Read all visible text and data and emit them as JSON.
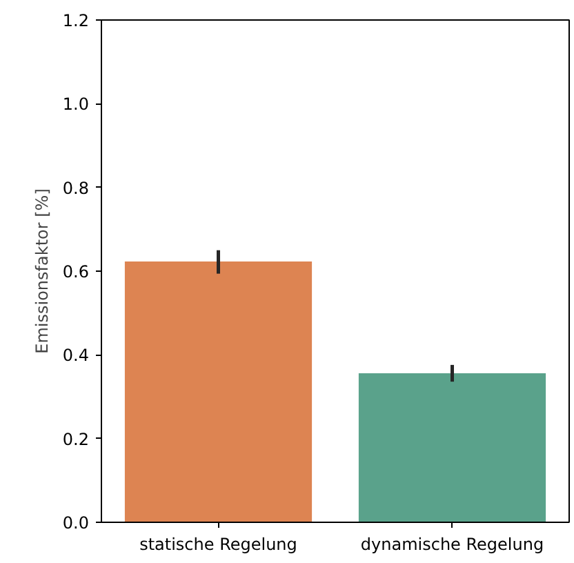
{
  "chart_data": {
    "type": "bar",
    "ylabel": "Emissionsfaktor [%]",
    "categories": [
      "statische Regelung",
      "dynamische Regelung"
    ],
    "values": [
      0.623,
      0.356
    ],
    "colors": [
      "#dd8452",
      "#5aa28b"
    ],
    "errors": [
      [
        0.594,
        0.65
      ],
      [
        0.336,
        0.376
      ]
    ],
    "ylim": [
      0,
      1.2
    ],
    "yticks": [
      {
        "value": 0,
        "label": "0.0"
      },
      {
        "value": 0.2,
        "label": "0.2"
      },
      {
        "value": 0.4,
        "label": "0.4"
      },
      {
        "value": 0.6,
        "label": "0.6"
      },
      {
        "value": 0.8,
        "label": "0.8"
      },
      {
        "value": 1.0,
        "label": "1.0"
      },
      {
        "value": 1.2,
        "label": "1.2"
      }
    ],
    "grid": false
  }
}
